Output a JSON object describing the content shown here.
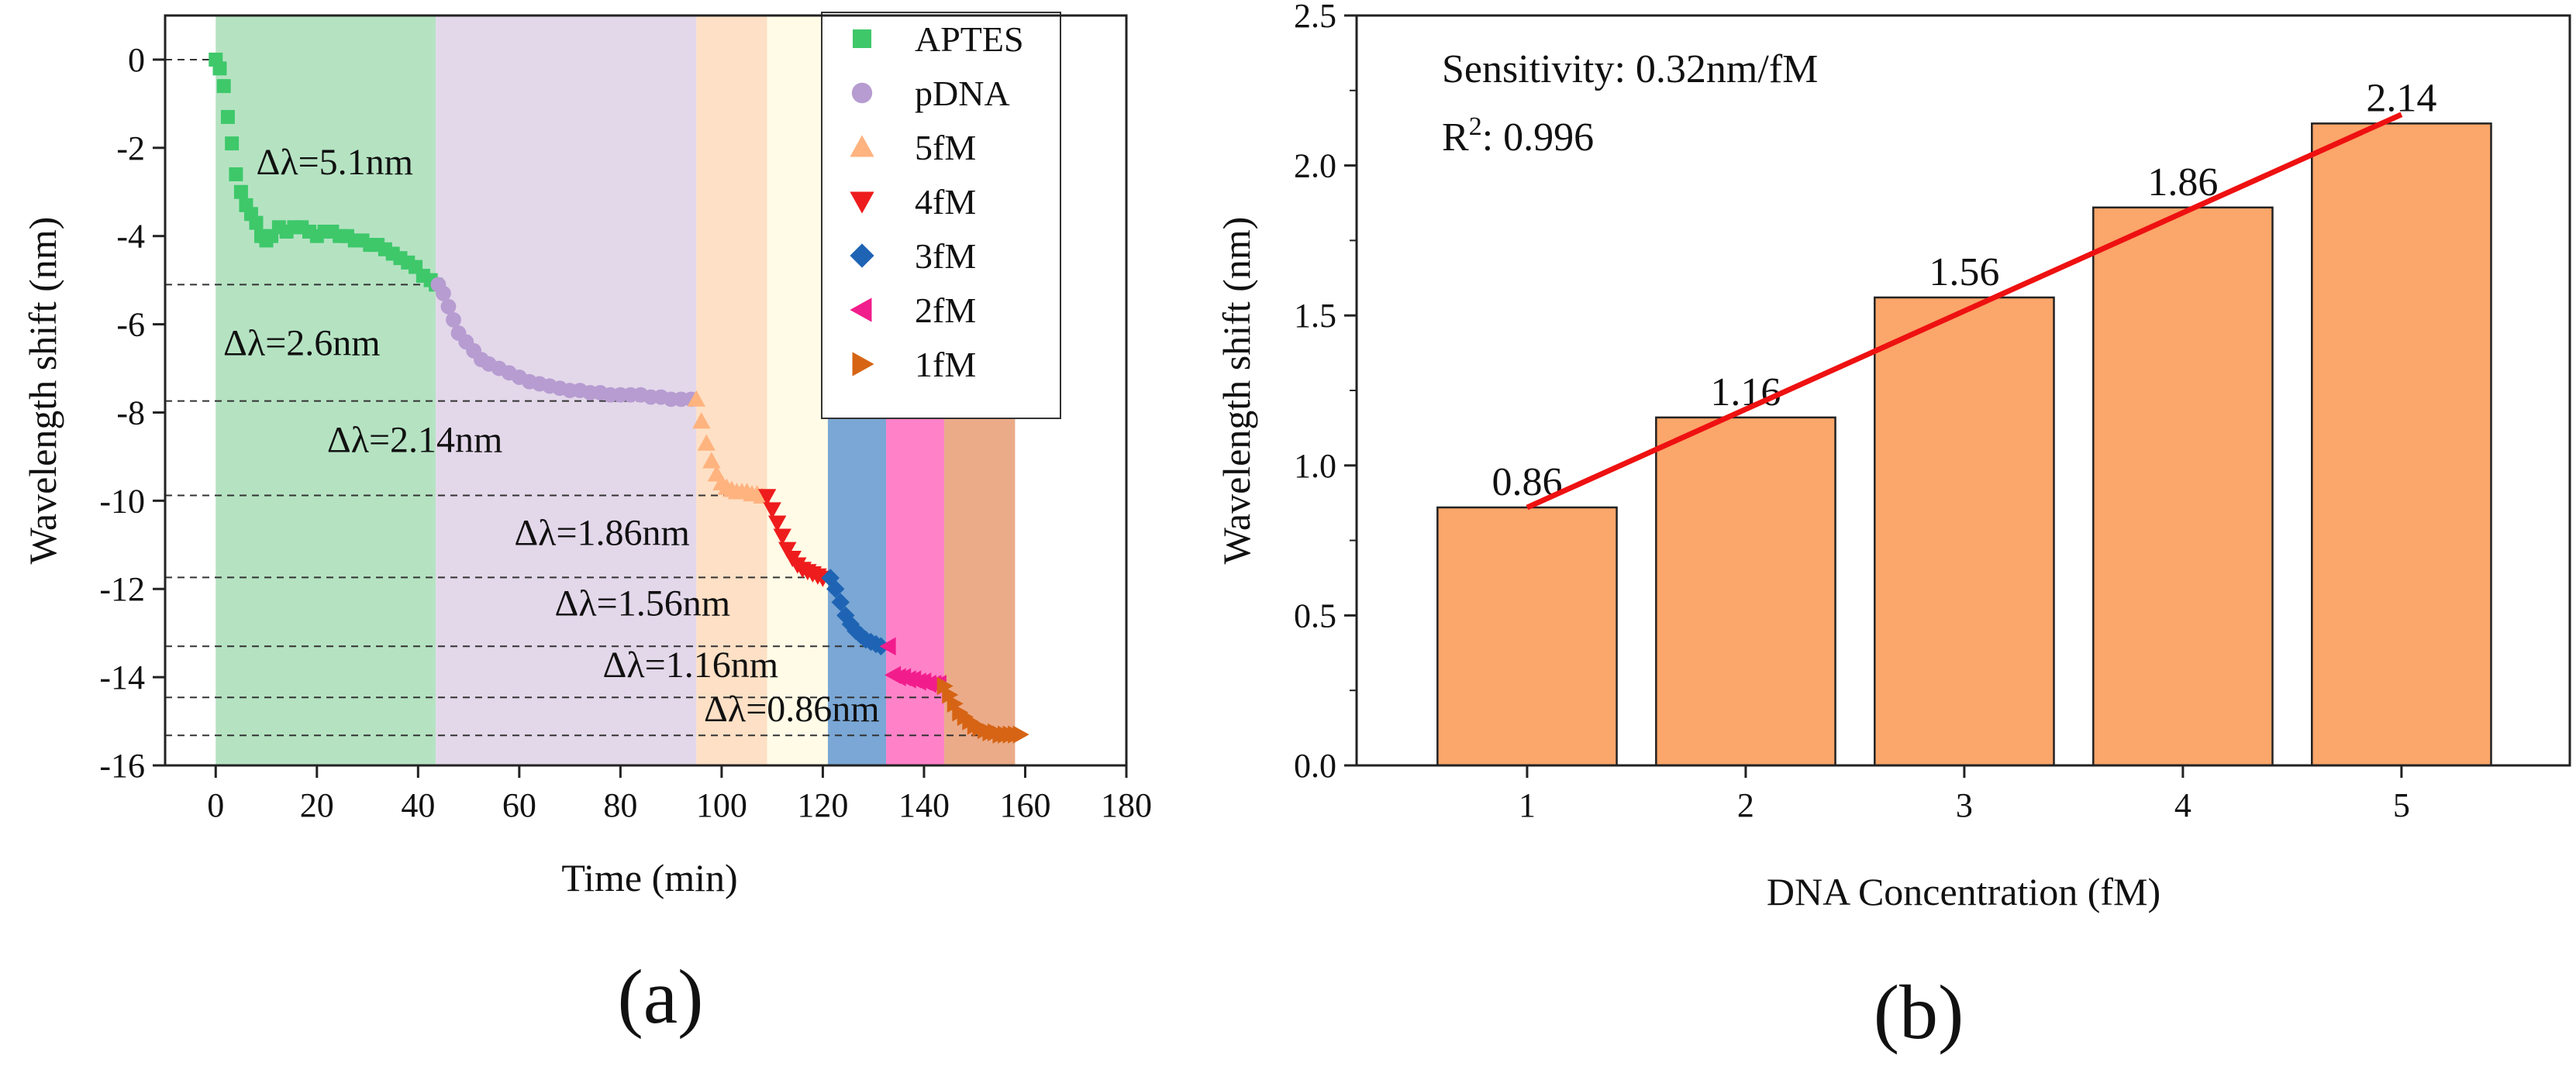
{
  "chart_data": [
    {
      "panel": "(a)",
      "type": "scatter",
      "xlabel": "Time (min)",
      "ylabel": "Wavelength shift (nm)",
      "xlim": [
        -10,
        180
      ],
      "ylim": [
        -16,
        1
      ],
      "xticks": [
        0,
        20,
        40,
        60,
        80,
        100,
        120,
        140,
        160,
        180
      ],
      "yticks": [
        0,
        -2,
        -4,
        -6,
        -8,
        -10,
        -12,
        -14,
        -16
      ],
      "legend_position": "top-right",
      "grid": false,
      "regions": [
        {
          "name": "APTES",
          "x": [
            0,
            43.5
          ],
          "color": "#b5e3c2"
        },
        {
          "name": "pDNA",
          "x": [
            43.5,
            95
          ],
          "color": "#e3d7ea"
        },
        {
          "name": "5fM",
          "x": [
            95,
            109
          ],
          "color": "#fde0c5"
        },
        {
          "name": "4fM",
          "x": [
            109,
            121
          ],
          "color": "#fffbe7"
        },
        {
          "name": "3fM",
          "x": [
            121,
            132.5
          ],
          "color": "#7aa7d5"
        },
        {
          "name": "2fM",
          "x": [
            132.5,
            144
          ],
          "color": "#ff82c8"
        },
        {
          "name": "1fM",
          "x": [
            144,
            158
          ],
          "color": "#ebab89"
        }
      ],
      "series": [
        {
          "name": "APTES",
          "marker": "square",
          "color": "#3ec86a",
          "x": [
            0,
            0.8,
            1.6,
            2.4,
            3.2,
            4.0,
            5.0,
            6.0,
            7.0,
            8.0,
            9.0,
            10.0,
            11.0,
            12.5,
            14.0,
            15.5,
            17.0,
            18.5,
            20.0,
            21.5,
            23.0,
            24.5,
            26.0,
            27.5,
            29.0,
            30.5,
            32.0,
            33.5,
            35.0,
            36.5,
            38.0,
            39.5,
            41.0,
            42.5,
            43.5
          ],
          "y": [
            0,
            -0.2,
            -0.6,
            -1.3,
            -1.9,
            -2.6,
            -3.0,
            -3.3,
            -3.5,
            -3.7,
            -4.0,
            -4.1,
            -4.0,
            -3.8,
            -3.9,
            -3.8,
            -3.8,
            -3.9,
            -4.0,
            -3.9,
            -3.9,
            -4.0,
            -4.0,
            -4.1,
            -4.1,
            -4.2,
            -4.2,
            -4.3,
            -4.4,
            -4.5,
            -4.6,
            -4.7,
            -4.9,
            -5.0,
            -5.1
          ]
        },
        {
          "name": "pDNA",
          "marker": "circle",
          "color": "#b69cd0",
          "x": [
            44,
            45,
            46,
            47,
            48,
            49.5,
            51,
            52.5,
            54,
            56,
            58,
            60,
            62,
            64,
            66,
            68,
            70,
            72,
            74,
            76,
            78,
            80,
            82,
            84,
            86,
            88,
            90,
            92,
            94
          ],
          "y": [
            -5.1,
            -5.3,
            -5.6,
            -5.9,
            -6.2,
            -6.4,
            -6.6,
            -6.8,
            -6.9,
            -7.0,
            -7.1,
            -7.2,
            -7.3,
            -7.35,
            -7.4,
            -7.45,
            -7.5,
            -7.5,
            -7.55,
            -7.55,
            -7.6,
            -7.6,
            -7.6,
            -7.6,
            -7.65,
            -7.65,
            -7.7,
            -7.7,
            -7.7
          ]
        },
        {
          "name": "5fM",
          "marker": "triangle-up",
          "color": "#ffb37f",
          "x": [
            95,
            96,
            97,
            98,
            99,
            100,
            101,
            102,
            103,
            104,
            105,
            106,
            107,
            108
          ],
          "y": [
            -7.7,
            -8.2,
            -8.7,
            -9.1,
            -9.4,
            -9.6,
            -9.7,
            -9.75,
            -9.8,
            -9.8,
            -9.8,
            -9.85,
            -9.85,
            -9.9
          ]
        },
        {
          "name": "4fM",
          "marker": "triangle-down",
          "color": "#ee1c1c",
          "x": [
            109,
            110,
            111,
            112,
            113,
            114,
            115,
            116,
            117,
            118,
            119,
            120
          ],
          "y": [
            -9.9,
            -10.2,
            -10.5,
            -10.8,
            -11.1,
            -11.3,
            -11.45,
            -11.55,
            -11.6,
            -11.65,
            -11.7,
            -11.75
          ]
        },
        {
          "name": "3fM",
          "marker": "diamond",
          "color": "#1f64b4",
          "x": [
            121.5,
            122.5,
            123.5,
            124.5,
            125.5,
            126.5,
            127.5,
            128.5,
            129.5,
            130.5,
            131.5
          ],
          "y": [
            -11.75,
            -12.0,
            -12.3,
            -12.6,
            -12.8,
            -12.95,
            -13.05,
            -13.15,
            -13.2,
            -13.25,
            -13.3
          ]
        },
        {
          "name": "2fM",
          "marker": "triangle-left",
          "color": "#f21d8c",
          "x": [
            133,
            134,
            135,
            136,
            137,
            138,
            139,
            140,
            141,
            142,
            143
          ],
          "y": [
            -13.3,
            -13.95,
            -14.0,
            -14.0,
            -14.05,
            -14.05,
            -14.1,
            -14.1,
            -14.15,
            -14.15,
            -14.15
          ]
        },
        {
          "name": "1fM",
          "marker": "triangle-right",
          "color": "#d66414",
          "x": [
            144,
            145,
            146,
            147,
            148,
            149,
            150,
            151,
            152,
            153,
            154,
            155,
            156,
            157,
            158,
            159
          ],
          "y": [
            -14.2,
            -14.4,
            -14.6,
            -14.8,
            -14.9,
            -15.0,
            -15.1,
            -15.15,
            -15.2,
            -15.25,
            -15.25,
            -15.3,
            -15.3,
            -15.3,
            -15.3,
            -15.3
          ]
        }
      ],
      "reference_lines": [
        {
          "y": 0,
          "x_end": 0
        },
        {
          "y": -5.1,
          "x_end": 43.5
        },
        {
          "y": -7.74,
          "x_end": 95
        },
        {
          "y": -9.88,
          "x_end": 109
        },
        {
          "y": -11.74,
          "x_end": 121
        },
        {
          "y": -13.3,
          "x_end": 132.5
        },
        {
          "y": -14.46,
          "x_end": 144
        },
        {
          "y": -15.32,
          "x_end": 158
        }
      ],
      "annotations": [
        {
          "text": "Δλ=5.1nm",
          "x": 8,
          "y": -2.6
        },
        {
          "text": "Δλ=2.6nm",
          "x": 1.5,
          "y": -6.7
        },
        {
          "text": "Δλ=2.14nm",
          "x": 22,
          "y": -8.9
        },
        {
          "text": "Δλ=1.86nm",
          "x": 59,
          "y": -11.0
        },
        {
          "text": "Δλ=1.56nm",
          "x": 67,
          "y": -12.6
        },
        {
          "text": "Δλ=1.16nm",
          "x": 76.5,
          "y": -14.0
        },
        {
          "text": "Δλ=0.86nm",
          "x": 96.5,
          "y": -15.0
        }
      ]
    },
    {
      "panel": "(b)",
      "type": "bar",
      "xlabel": "DNA Concentration (fM)",
      "ylabel": "Wavelength shift (nm)",
      "categories": [
        "1",
        "2",
        "3",
        "4",
        "5"
      ],
      "values": [
        0.86,
        1.16,
        1.56,
        1.86,
        2.14
      ],
      "value_labels": [
        "0.86",
        "1.16",
        "1.56",
        "1.86",
        "2.14"
      ],
      "ylim": [
        0,
        2.5
      ],
      "yticks": [
        "0.0",
        "0.5",
        "1.0",
        "1.5",
        "2.0",
        "2.5"
      ],
      "bar_color": "#fba66a",
      "fit": {
        "x": [
          1,
          5
        ],
        "y": [
          0.86,
          2.17
        ],
        "color": "#ee1111"
      },
      "sensitivity_text": "Sensitivity: 0.32nm/fM",
      "r2_prefix": "R",
      "r2_sup": "2",
      "r2_value": ": 0.996"
    }
  ]
}
